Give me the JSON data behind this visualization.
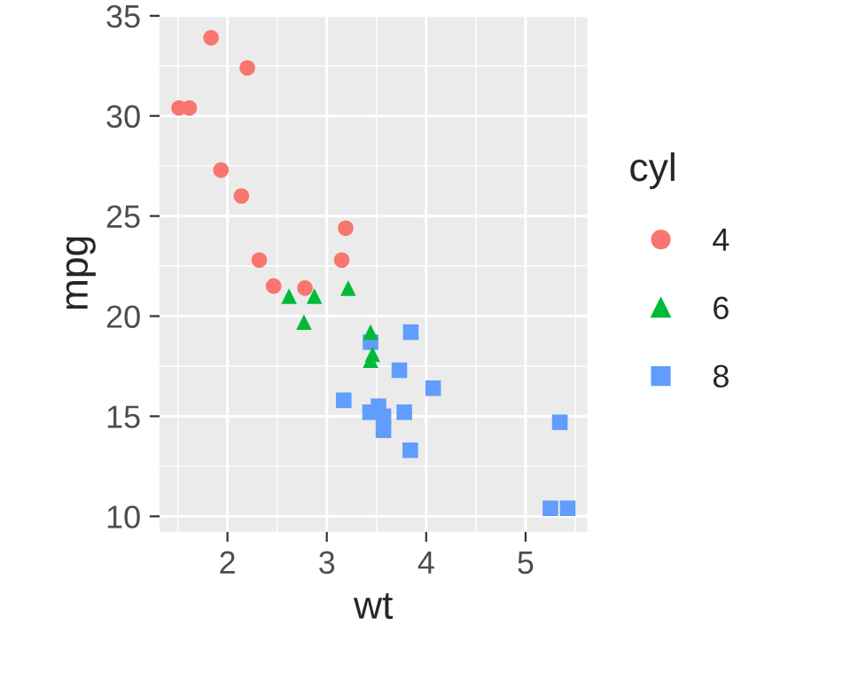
{
  "chart_data": {
    "type": "scatter",
    "xlabel": "wt",
    "ylabel": "mpg",
    "legend_title": "cyl",
    "legend": "right",
    "grid": true,
    "xlim": [
      1.317,
      5.62
    ],
    "xticks": [
      2,
      3,
      4,
      5
    ],
    "ylim": [
      9.225,
      35.075
    ],
    "yticks": [
      10,
      15,
      20,
      25,
      30,
      35
    ],
    "series": [
      {
        "name": "4",
        "color": "#f8766d",
        "marker": "circle",
        "x": [
          2.32,
          3.19,
          3.15,
          2.2,
          1.615,
          1.835,
          2.465,
          1.935,
          2.14,
          1.513,
          2.78
        ],
        "values": [
          22.8,
          24.4,
          22.8,
          32.4,
          30.4,
          33.9,
          21.5,
          27.3,
          26.0,
          30.4,
          21.4
        ]
      },
      {
        "name": "6",
        "color": "#00ba38",
        "marker": "triangle",
        "x": [
          2.62,
          2.875,
          3.215,
          3.46,
          3.44,
          3.44,
          2.77
        ],
        "values": [
          21.0,
          21.0,
          21.4,
          18.1,
          19.2,
          17.8,
          19.7
        ]
      },
      {
        "name": "8",
        "color": "#619cff",
        "marker": "square",
        "x": [
          3.44,
          3.57,
          4.07,
          3.73,
          3.78,
          5.25,
          5.424,
          5.345,
          3.52,
          3.435,
          3.84,
          3.845,
          3.17,
          3.57
        ],
        "values": [
          18.7,
          14.3,
          16.4,
          17.3,
          15.2,
          10.4,
          10.4,
          14.7,
          15.5,
          15.2,
          13.3,
          19.2,
          15.8,
          15.0
        ]
      }
    ]
  }
}
